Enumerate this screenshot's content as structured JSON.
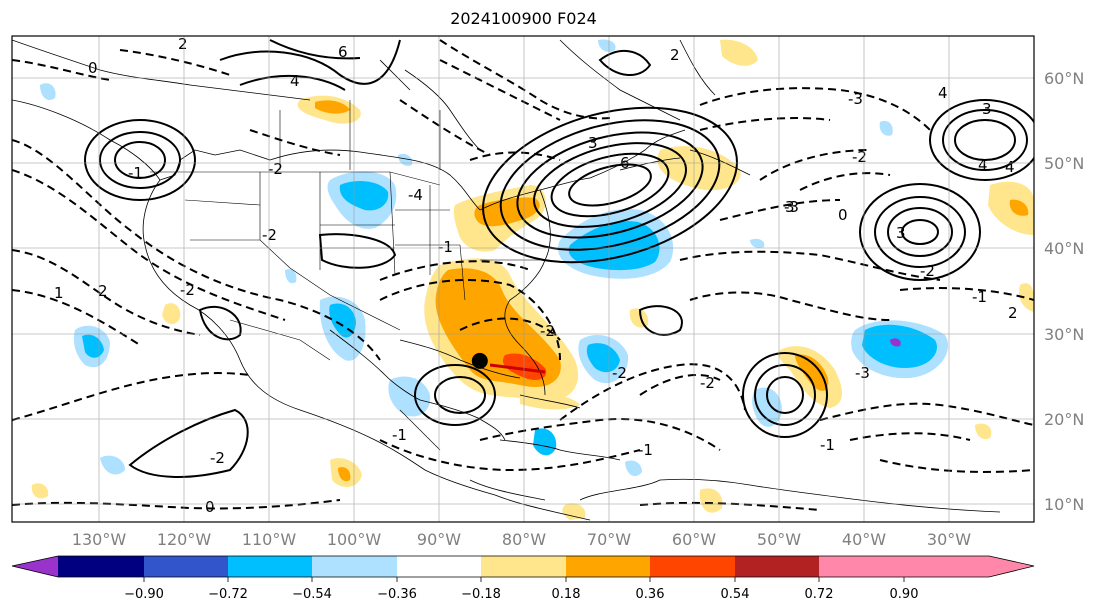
{
  "title": "2024100900 F024",
  "lon_labels": [
    "130°W",
    "120°W",
    "110°W",
    "100°W",
    "90°W",
    "80°W",
    "70°W",
    "60°W",
    "50°W",
    "40°W",
    "30°W"
  ],
  "lat_labels": [
    "60°N",
    "50°N",
    "40°N",
    "30°N",
    "20°N",
    "10°N"
  ],
  "colorbar": {
    "ticks": [
      "−0.90",
      "−0.72",
      "−0.54",
      "−0.36",
      "−0.18",
      "0.18",
      "0.36",
      "0.54",
      "0.72",
      "0.90"
    ],
    "colors": [
      "#9933cc",
      "#000080",
      "#3355cc",
      "#00bfff",
      "#aee0ff",
      "#ffffff",
      "#ffe68c",
      "#ffa500",
      "#ff4500",
      "#b22222",
      "#ff88aa"
    ]
  },
  "contour_labels": [
    "2",
    "0",
    "6",
    "4",
    "2",
    "-1",
    "-2",
    "3",
    "6",
    "4",
    "3",
    "4",
    "3",
    "-3",
    "-2",
    "-3",
    "-2",
    "-1",
    "2",
    "0",
    "-1",
    "-2",
    "-1",
    "1",
    "2",
    "-2",
    "-3",
    "-1",
    "0",
    "-2",
    "-2",
    "3",
    "-1",
    "-2",
    "-4",
    "-2",
    "4"
  ],
  "colors": {
    "warm_light": "#ffe68c",
    "warm": "#ffa500",
    "hot": "#ff4500",
    "cool_light": "#aee0ff",
    "cool": "#00bfff"
  },
  "markers": [
    {
      "name": "storm-center",
      "lon": -85.2,
      "lat": 26.8
    }
  ]
}
